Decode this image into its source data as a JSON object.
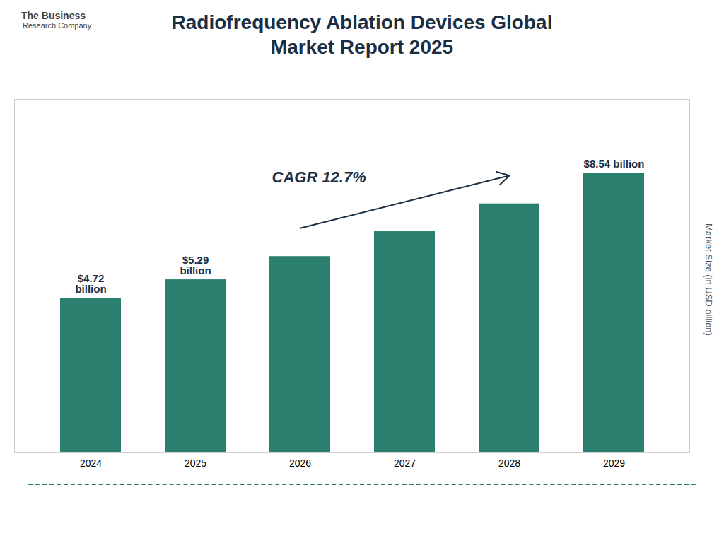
{
  "chart_data": {
    "type": "bar",
    "title": "Radiofrequency Ablation Devices Global\nMarket Report 2025",
    "categories": [
      "2024",
      "2025",
      "2026",
      "2027",
      "2028",
      "2029"
    ],
    "values": [
      4.72,
      5.29,
      6.0,
      6.76,
      7.61,
      8.54
    ],
    "value_labels": [
      "$4.72\nbillion",
      "$5.29\nbillion",
      null,
      null,
      null,
      "$8.54 billion"
    ],
    "data_labels": true,
    "color": "#2a7f6f",
    "ylabel": "Market Size (in USD billion)",
    "ylim": [
      0,
      10.8
    ],
    "yticks": [],
    "tick_labels": "x",
    "grid": false,
    "annotations": [
      "CAGR 12.7%",
      "The Business",
      "Research Company"
    ]
  }
}
